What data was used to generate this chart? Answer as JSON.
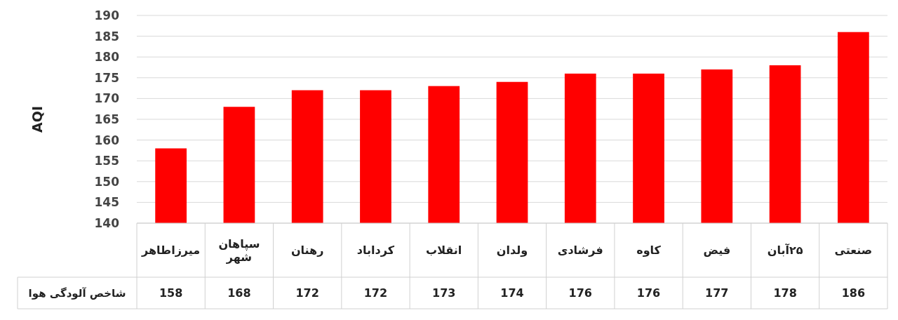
{
  "chart_data": {
    "type": "bar",
    "ylabel": "AQI",
    "categories": [
      "میرزاطاهر",
      "سپاهان شهر",
      "رهنان",
      "کرداباد",
      "انقلاب",
      "ولدان",
      "فرشادی",
      "کاوه",
      "فیض",
      "۲۵آبان",
      "صنعتی"
    ],
    "series": [
      {
        "name": "شاخص آلودگی هوا",
        "color": "#ff0000",
        "values": [
          158,
          168,
          172,
          172,
          173,
          174,
          176,
          176,
          177,
          178,
          186
        ]
      }
    ],
    "ylim": [
      140,
      190
    ],
    "yticks": [
      140,
      145,
      150,
      155,
      160,
      165,
      170,
      175,
      180,
      185,
      190
    ],
    "grid": "y",
    "data_labels": true
  }
}
